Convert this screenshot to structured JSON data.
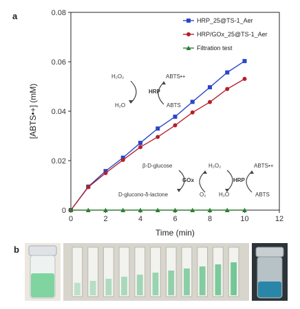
{
  "panel_labels": {
    "a": "a",
    "b": "b"
  },
  "chart_data": {
    "type": "line",
    "xlabel": "Time (min)",
    "ylabel": "[ABTS•+] (mM)",
    "xlim": [
      0,
      12
    ],
    "ylim": [
      0,
      0.08
    ],
    "xticks": [
      "0",
      "2",
      "4",
      "6",
      "8",
      "10",
      "12"
    ],
    "yticks": [
      "0",
      "0.02",
      "0.04",
      "0.06",
      "0.08"
    ],
    "grid": false,
    "legend_position": "top-right",
    "series": [
      {
        "name": "HRP_25@TS-1_Aer",
        "color": "#2946c9",
        "marker": "square",
        "x": [
          0,
          1,
          2,
          3,
          4,
          5,
          6,
          7,
          8,
          9,
          10
        ],
        "y": [
          0,
          0.0095,
          0.0158,
          0.0212,
          0.0272,
          0.033,
          0.0378,
          0.0438,
          0.0497,
          0.0557,
          0.0603
        ]
      },
      {
        "name": "HRP/GOx_25@TS-1_Aer",
        "color": "#b3202c",
        "marker": "circle",
        "x": [
          0,
          1,
          2,
          3,
          4,
          5,
          6,
          7,
          8,
          9,
          10
        ],
        "y": [
          0,
          0.0093,
          0.015,
          0.0203,
          0.0255,
          0.0296,
          0.0343,
          0.0395,
          0.0437,
          0.049,
          0.0531
        ]
      },
      {
        "name": "Filtration test",
        "color": "#2e7d32",
        "marker": "triangle",
        "x": [
          0,
          1,
          2,
          3,
          4,
          5,
          6,
          7,
          8,
          9,
          10
        ],
        "y": [
          0,
          0,
          0,
          0,
          0,
          0,
          0,
          0,
          0,
          0,
          0
        ]
      }
    ],
    "annotations": {
      "h2o2": "H₂O₂",
      "h2o": "H₂O",
      "hrp": "HRP",
      "abts_radical": "ABTS•+",
      "abts": "ABTS",
      "b_d_glucose": "β-D-glucose",
      "d_glucono_lactone": "D-glucono-δ-lactone",
      "gox": "GOx",
      "o2": "O₂"
    }
  },
  "photos": {
    "left_vial_liquid_color": "#7fd4a0",
    "cuvette_liquid_color": "#5cbf86",
    "right_vial_liquid_color": "#2a86a8",
    "cuvette_count": 11
  }
}
